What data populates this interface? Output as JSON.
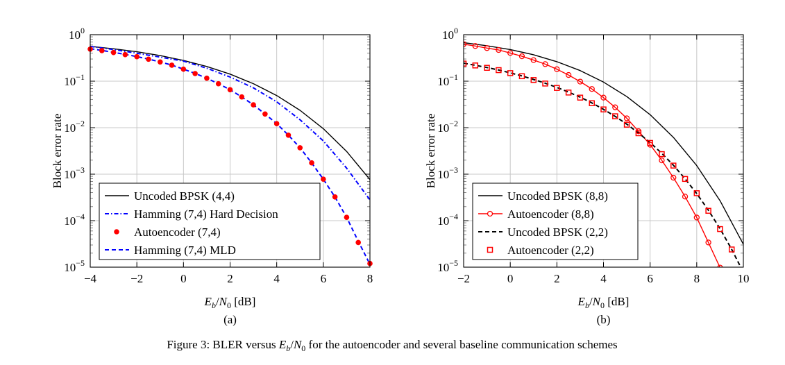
{
  "figure": {
    "caption_prefix": "Figure 3: BLER versus ",
    "caption_math_E": "E",
    "caption_math_b": "b",
    "caption_math_N": "N",
    "caption_math_0": "0",
    "caption_suffix": " for the autoencoder and several baseline communication schemes"
  },
  "chart_data": [
    {
      "type": "line",
      "panel_label": "(a)",
      "title": "",
      "xlabel": "Eb/N0 [dB]",
      "ylabel": "Block error rate",
      "xlim": [
        -4,
        8
      ],
      "ylim": [
        1e-05,
        1
      ],
      "yscale": "log",
      "grid": true,
      "legend_position": "bottom-left",
      "xticks": [
        -4,
        -2,
        0,
        2,
        4,
        6,
        8
      ],
      "xtick_labels": [
        "−4",
        "−2",
        "0",
        "2",
        "4",
        "6",
        "8"
      ],
      "yticks_exp": [
        0,
        -1,
        -2,
        -3,
        -4,
        -5
      ],
      "series": [
        {
          "name": "Uncoded BPSK (4,4)",
          "style": "solid",
          "color": "#000000",
          "marker": "none",
          "x": [
            -4,
            -3,
            -2,
            -1,
            0,
            1,
            2,
            3,
            4,
            5,
            6,
            7,
            8
          ],
          "y": [
            0.562,
            0.498,
            0.429,
            0.355,
            0.279,
            0.207,
            0.142,
            0.0885,
            0.0491,
            0.0236,
            0.00953,
            0.00309,
            0.000764
          ]
        },
        {
          "name": "Hamming (7,4) Hard Decision",
          "style": "dashdot",
          "color": "#0000ff",
          "marker": "none",
          "x": [
            -4,
            -3,
            -2,
            -1,
            0,
            1,
            2,
            3,
            4,
            5,
            6,
            7,
            8
          ],
          "y": [
            0.56,
            0.48,
            0.4,
            0.33,
            0.27,
            0.19,
            0.123,
            0.072,
            0.036,
            0.0148,
            0.0052,
            0.00135,
            0.00028
          ]
        },
        {
          "name": "Autoencoder (7,4)",
          "style": "none",
          "color": "#ff0000",
          "marker": "dot",
          "x": [
            -4,
            -3.5,
            -3,
            -2.5,
            -2,
            -1.5,
            -1,
            -0.5,
            0,
            0.5,
            1,
            1.5,
            2,
            2.5,
            3,
            3.5,
            4,
            4.5,
            5,
            5.5,
            6,
            6.5,
            7,
            7.5,
            8
          ],
          "y": [
            0.49,
            0.454,
            0.414,
            0.373,
            0.336,
            0.297,
            0.259,
            0.221,
            0.181,
            0.146,
            0.116,
            0.088,
            0.0655,
            0.0459,
            0.031,
            0.0197,
            0.0122,
            0.0069,
            0.0037,
            0.00175,
            0.00078,
            0.000324,
            0.000118,
            3.4e-05,
            1.2e-05
          ]
        },
        {
          "name": "Hamming (7,4) MLD",
          "style": "dashed",
          "color": "#0000ff",
          "marker": "none",
          "x": [
            -4,
            -3.5,
            -3,
            -2.5,
            -2,
            -1.5,
            -1,
            -0.5,
            0,
            0.5,
            1,
            1.5,
            2,
            2.5,
            3,
            3.5,
            4,
            4.5,
            5,
            5.5,
            6,
            6.5,
            7,
            7.5,
            8
          ],
          "y": [
            0.5,
            0.46,
            0.418,
            0.377,
            0.338,
            0.298,
            0.26,
            0.222,
            0.182,
            0.147,
            0.116,
            0.088,
            0.0655,
            0.0459,
            0.031,
            0.0197,
            0.0122,
            0.0069,
            0.0037,
            0.00175,
            0.00078,
            0.000324,
            0.000118,
            3.6e-05,
            1.15e-05
          ]
        }
      ]
    },
    {
      "type": "line",
      "panel_label": "(b)",
      "title": "",
      "xlabel": "Eb/N0 [dB]",
      "ylabel": "Block error rate",
      "xlim": [
        -2,
        10
      ],
      "ylim": [
        1e-05,
        1
      ],
      "yscale": "log",
      "grid": true,
      "legend_position": "bottom-left",
      "xticks": [
        -2,
        0,
        2,
        4,
        6,
        8,
        10
      ],
      "xtick_labels": [
        "−2",
        "0",
        "2",
        "4",
        "6",
        "8",
        "10"
      ],
      "yticks_exp": [
        0,
        -1,
        -2,
        -3,
        -4,
        -5
      ],
      "series": [
        {
          "name": "Uncoded BPSK (8,8)",
          "style": "solid",
          "color": "#000000",
          "marker": "none",
          "x": [
            -2,
            -1,
            0,
            1,
            2,
            3,
            4,
            5,
            6,
            7,
            8,
            9,
            10
          ],
          "y": [
            0.673,
            0.58,
            0.48,
            0.371,
            0.263,
            0.169,
            0.0956,
            0.0466,
            0.019,
            0.00617,
            0.00153,
            0.000269,
            3.1e-05
          ]
        },
        {
          "name": "Autoencoder (8,8)",
          "style": "solid",
          "color": "#ff0000",
          "marker": "circle",
          "x": [
            -2,
            -1.5,
            -1,
            -0.5,
            0,
            0.5,
            1,
            1.5,
            2,
            2.5,
            3,
            3.5,
            4,
            4.5,
            5,
            5.5,
            6,
            6.5,
            7,
            7.5,
            8,
            8.5,
            9
          ],
          "y": [
            0.624,
            0.571,
            0.515,
            0.469,
            0.404,
            0.344,
            0.284,
            0.233,
            0.181,
            0.136,
            0.098,
            0.068,
            0.0443,
            0.0274,
            0.0159,
            0.0084,
            0.0043,
            0.00198,
            0.00084,
            0.00033,
            0.000117,
            3.4e-05,
            9.8e-06
          ]
        },
        {
          "name": "Uncoded BPSK (2,2)",
          "style": "dashed",
          "color": "#000000",
          "marker": "none",
          "x": [
            -2,
            -1.5,
            -1,
            -0.5,
            0,
            0.5,
            1,
            1.5,
            2,
            2.5,
            3,
            3.5,
            4,
            4.5,
            5,
            5.5,
            6,
            6.5,
            7,
            7.5,
            8,
            8.5,
            9,
            9.5,
            10
          ],
          "y": [
            0.244,
            0.22,
            0.197,
            0.174,
            0.151,
            0.13,
            0.109,
            0.0906,
            0.0736,
            0.0583,
            0.0453,
            0.0341,
            0.0248,
            0.0175,
            0.0119,
            0.0077,
            0.00477,
            0.0028,
            0.00155,
            0.000798,
            0.000382,
            0.000168,
            6.72e-05,
            2.42e-05,
            7.7e-06
          ]
        },
        {
          "name": "Autoencoder (2,2)",
          "style": "none",
          "color": "#ff0000",
          "marker": "square",
          "x": [
            -2,
            -1.5,
            -1,
            -0.5,
            0,
            0.5,
            1,
            1.5,
            2,
            2.5,
            3,
            3.5,
            4,
            4.5,
            5,
            5.5,
            6,
            6.5,
            7,
            7.5,
            8,
            8.5,
            9,
            9.5
          ],
          "y": [
            0.239,
            0.218,
            0.194,
            0.173,
            0.149,
            0.128,
            0.106,
            0.089,
            0.0717,
            0.057,
            0.0443,
            0.0336,
            0.0247,
            0.0176,
            0.0116,
            0.0076,
            0.0047,
            0.0027,
            0.00153,
            0.00079,
            0.00039,
            0.000163,
            6.6e-05,
            2.4e-05
          ]
        }
      ]
    }
  ]
}
